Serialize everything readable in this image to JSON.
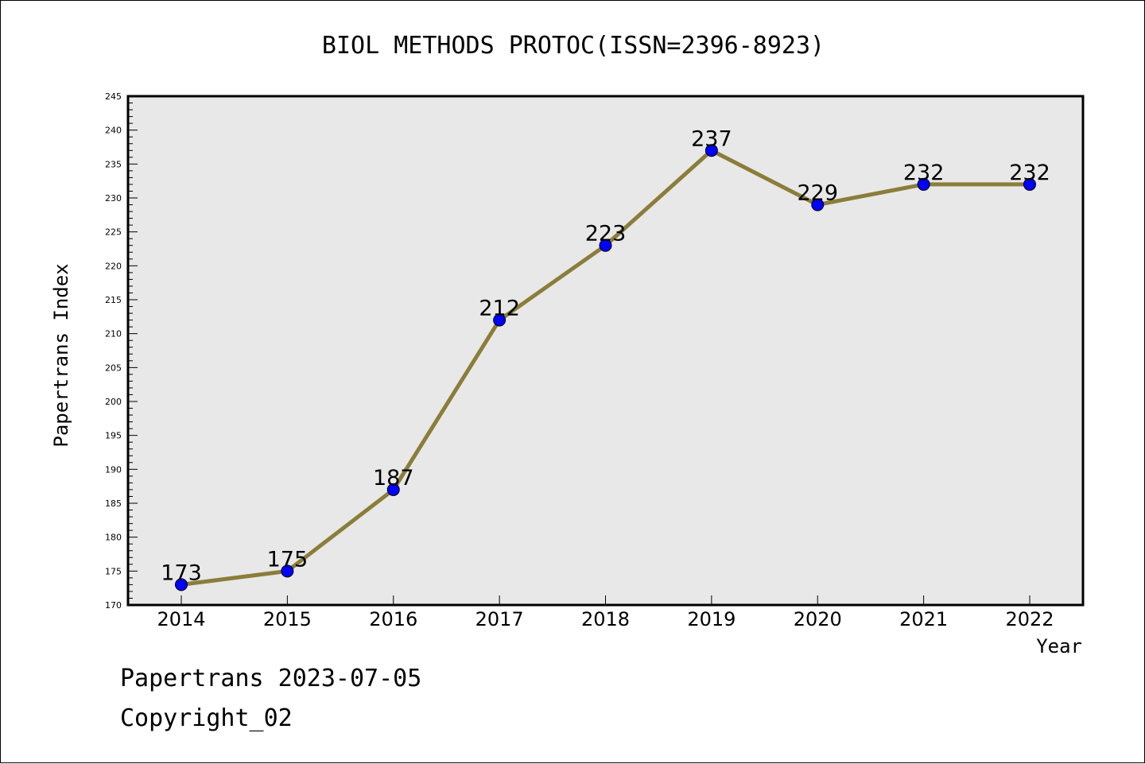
{
  "chart_data": {
    "type": "line",
    "title": "BIOL METHODS PROTOC(ISSN=2396-8923)",
    "xlabel": "Year",
    "ylabel": "Papertrans Index",
    "categories": [
      "2014",
      "2015",
      "2016",
      "2017",
      "2018",
      "2019",
      "2020",
      "2021",
      "2022"
    ],
    "series": [
      {
        "values": [
          173,
          175,
          187,
          212,
          223,
          237,
          229,
          232,
          232
        ]
      }
    ],
    "ylim": [
      170,
      245
    ],
    "ytick_step": 5,
    "grid": false,
    "legend": "none",
    "colors": {
      "line": "#8b7d3a",
      "marker": "#0000ff",
      "plot_bg": "#e8e8e8"
    }
  },
  "footer": {
    "line1": "Papertrans 2023-07-05",
    "line2": "Copyright_02"
  }
}
